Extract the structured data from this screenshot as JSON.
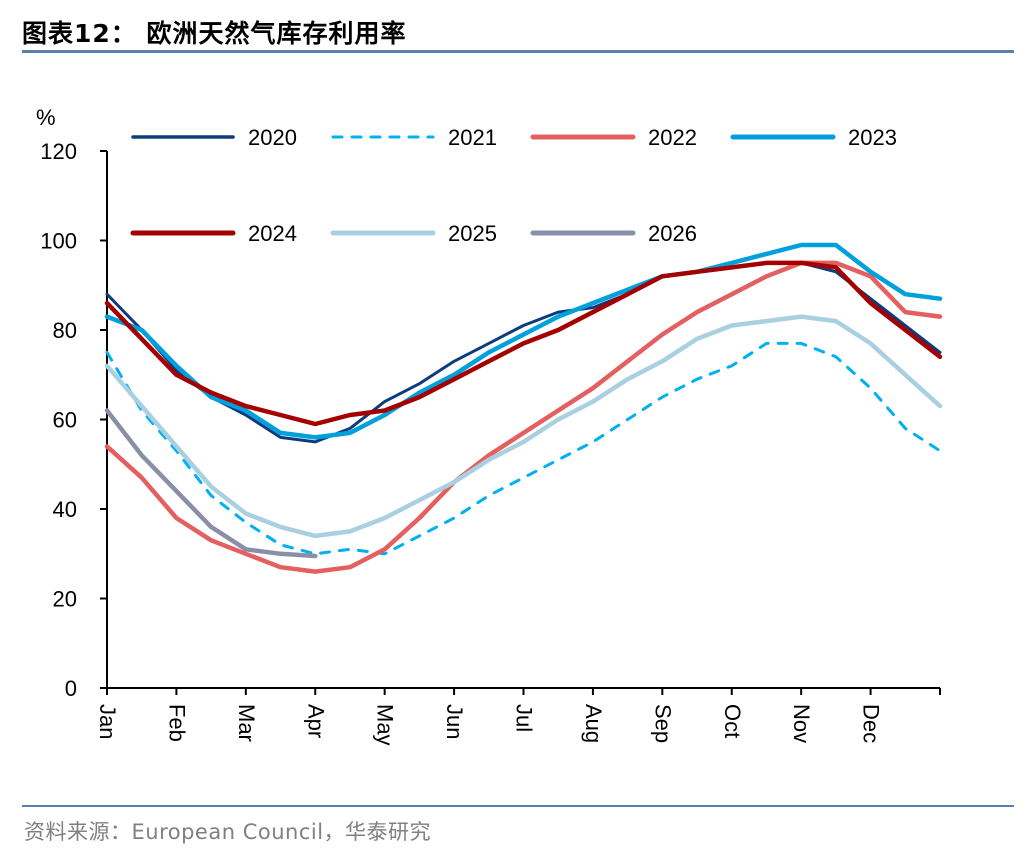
{
  "header": {
    "title": "图表12：  欧洲天然气库存利用率"
  },
  "footer": {
    "source": "资料来源：European Council，华泰研究"
  },
  "chart_data": {
    "type": "line",
    "title": "欧洲天然气库存利用率",
    "xlabel": "",
    "ylabel": "%",
    "ylim": [
      0,
      120
    ],
    "yticks": [
      0,
      20,
      40,
      60,
      80,
      100,
      120
    ],
    "xlim": [
      0,
      12
    ],
    "categories": [
      "Jan",
      "Feb",
      "Mar",
      "Apr",
      "May",
      "Jun",
      "Jul",
      "Aug",
      "Sep",
      "Oct",
      "Nov",
      "Dec"
    ],
    "grid": false,
    "legend_position": "top",
    "x": [
      0,
      0.5,
      1,
      1.5,
      2,
      2.5,
      3,
      3.5,
      4,
      4.5,
      5,
      5.5,
      6,
      6.5,
      7,
      7.5,
      8,
      8.5,
      9,
      9.5,
      10,
      10.5,
      11,
      11.5,
      12
    ],
    "series": [
      {
        "name": "2020",
        "color": "#0c3c7c",
        "dash": false,
        "width": 3,
        "values": [
          88,
          80,
          71,
          65,
          61,
          56,
          55,
          58,
          64,
          68,
          73,
          77,
          81,
          84,
          85,
          88,
          92,
          93,
          94,
          95,
          95,
          93,
          87,
          81,
          75
        ]
      },
      {
        "name": "2021",
        "color": "#00b0f0",
        "dash": true,
        "width": 3,
        "values": [
          75,
          62,
          53,
          43,
          37,
          32,
          30,
          31,
          30,
          34,
          38,
          43,
          47,
          51,
          55,
          60,
          65,
          69,
          72,
          77,
          77,
          74,
          67,
          58,
          53
        ]
      },
      {
        "name": "2022",
        "color": "#e46060",
        "dash": false,
        "width": 4.5,
        "values": [
          54,
          47,
          38,
          33,
          30,
          27,
          26,
          27,
          31,
          38,
          46,
          52,
          57,
          62,
          67,
          73,
          79,
          84,
          88,
          92,
          95,
          95,
          92,
          84,
          83
        ]
      },
      {
        "name": "2023",
        "color": "#00a0dc",
        "dash": false,
        "width": 4.5,
        "values": [
          83,
          80,
          72,
          65,
          62,
          57,
          56,
          57,
          61,
          66,
          70,
          75,
          79,
          83,
          86,
          89,
          92,
          93,
          95,
          97,
          99,
          99,
          93,
          88,
          87
        ]
      },
      {
        "name": "2024",
        "color": "#a50000",
        "dash": false,
        "width": 4.5,
        "values": [
          86,
          78,
          70,
          66,
          63,
          61,
          59,
          61,
          62,
          65,
          69,
          73,
          77,
          80,
          84,
          88,
          92,
          93,
          94,
          95,
          95,
          94,
          86,
          80,
          74
        ]
      },
      {
        "name": "2025",
        "color": "#a8d0e0",
        "dash": false,
        "width": 4.5,
        "values": [
          72,
          63,
          54,
          45,
          39,
          36,
          34,
          35,
          38,
          42,
          46,
          51,
          55,
          60,
          64,
          69,
          73,
          78,
          81,
          82,
          83,
          82,
          77,
          70,
          63
        ]
      },
      {
        "name": "2026",
        "color": "#8a8fa8",
        "dash": false,
        "width": 4.5,
        "values": [
          62,
          52,
          44,
          36,
          31,
          30,
          29.5
        ]
      }
    ]
  }
}
